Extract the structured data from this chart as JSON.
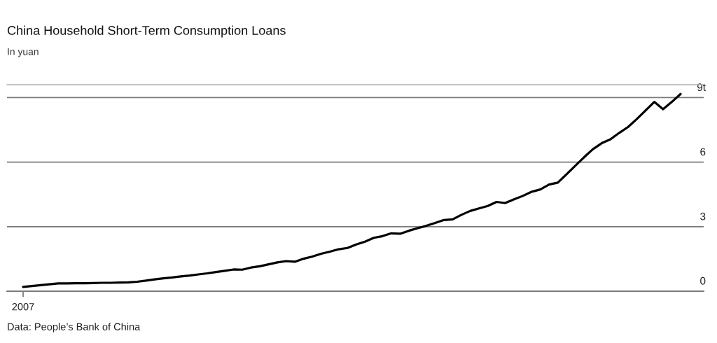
{
  "chart_data": {
    "type": "line",
    "title": "China Household Short-Term Consumption Loans",
    "subtitle": "In yuan",
    "annotations": [
      "Data: People’s Bank of China"
    ],
    "categories": [
      "2007",
      null,
      null,
      null,
      null,
      null,
      null,
      null,
      null,
      null,
      null,
      null,
      null,
      null,
      null,
      null,
      null,
      null,
      null,
      null,
      null,
      null,
      null,
      null,
      null,
      null,
      null,
      null,
      null,
      null,
      null,
      null,
      null,
      null,
      null,
      null,
      null,
      null,
      null,
      null,
      null,
      null,
      null,
      null,
      null,
      null,
      null,
      null,
      null,
      null,
      null,
      null,
      null,
      null,
      null,
      null,
      null,
      null,
      null,
      null,
      null,
      null,
      null,
      null,
      null,
      null,
      null,
      null,
      null,
      null,
      null,
      null,
      null,
      null,
      null,
      null
    ],
    "series": [
      {
        "color": "#000000",
        "values": [
          0.2,
          0.24,
          0.28,
          0.32,
          0.36,
          0.36,
          0.37,
          0.37,
          0.38,
          0.39,
          0.39,
          0.4,
          0.41,
          0.44,
          0.49,
          0.55,
          0.6,
          0.64,
          0.69,
          0.73,
          0.78,
          0.83,
          0.89,
          0.95,
          1.01,
          1.0,
          1.1,
          1.16,
          1.25,
          1.34,
          1.4,
          1.37,
          1.51,
          1.61,
          1.74,
          1.84,
          1.95,
          2.01,
          2.17,
          2.3,
          2.48,
          2.56,
          2.69,
          2.67,
          2.81,
          2.93,
          3.04,
          3.17,
          3.31,
          3.34,
          3.55,
          3.73,
          3.85,
          3.96,
          4.15,
          4.1,
          4.27,
          4.43,
          4.62,
          4.73,
          4.96,
          5.05,
          5.44,
          5.84,
          6.23,
          6.6,
          6.88,
          7.06,
          7.36,
          7.63,
          8.0,
          8.4,
          8.8,
          8.46,
          8.8,
          9.17
        ]
      }
    ],
    "ylim": [
      0,
      9.6
    ],
    "yticks": [
      0,
      3,
      6,
      {
        "value": 9,
        "label": "9t"
      }
    ],
    "grid": "y",
    "line_style": "solid"
  }
}
